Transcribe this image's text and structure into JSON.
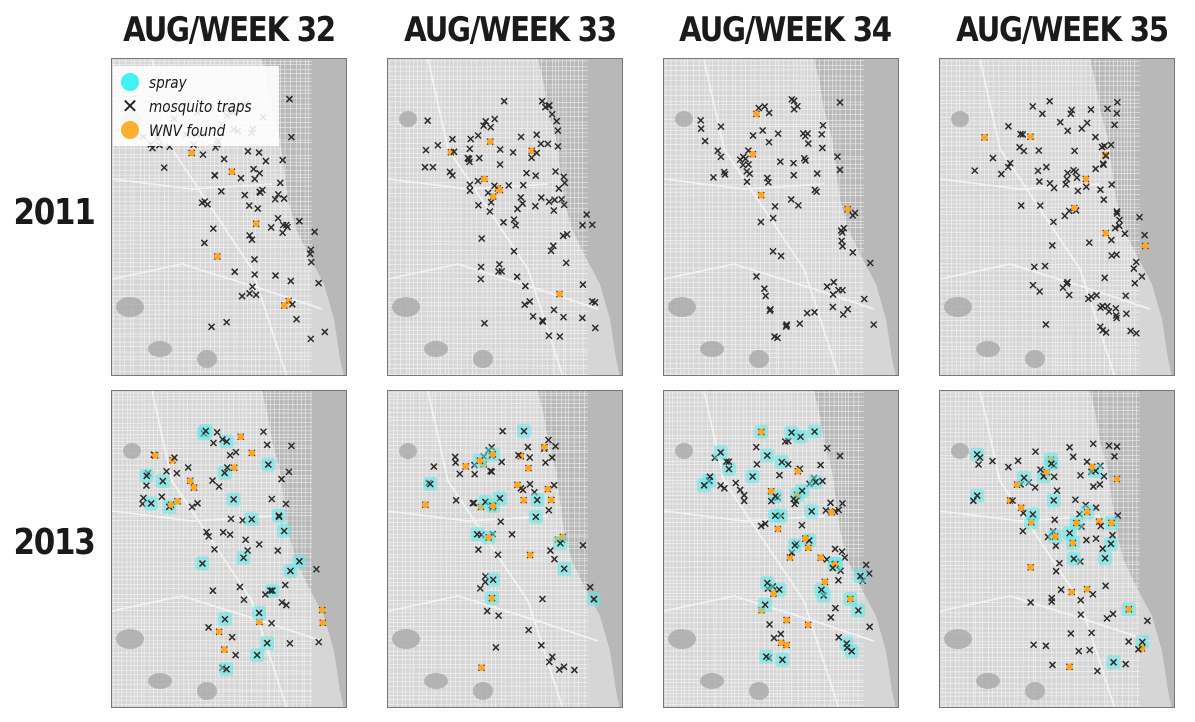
{
  "columns": [
    {
      "title": "AUG/WEEK 32"
    },
    {
      "title": "AUG/WEEK 33"
    },
    {
      "title": "AUG/WEEK 34"
    },
    {
      "title": "AUG/WEEK 35"
    }
  ],
  "rows": [
    {
      "title": "2011"
    },
    {
      "title": "2013"
    }
  ],
  "legend": {
    "items": [
      {
        "label": "spray",
        "icon": "spray-circle-icon",
        "color": "#3ff3f3"
      },
      {
        "label": "mosquito traps",
        "icon": "x-mark-icon",
        "color": "#222222"
      },
      {
        "label": "WNV found",
        "icon": "wnv-circle-icon",
        "color": "#ffae2e"
      }
    ]
  },
  "colors": {
    "land": "#d6d6d6",
    "water": "#b8b8b8",
    "streets": "#ffffff",
    "trap": "#2b2b2b",
    "wnv": "#ffa51f",
    "spray": "#5fe8e8"
  }
}
